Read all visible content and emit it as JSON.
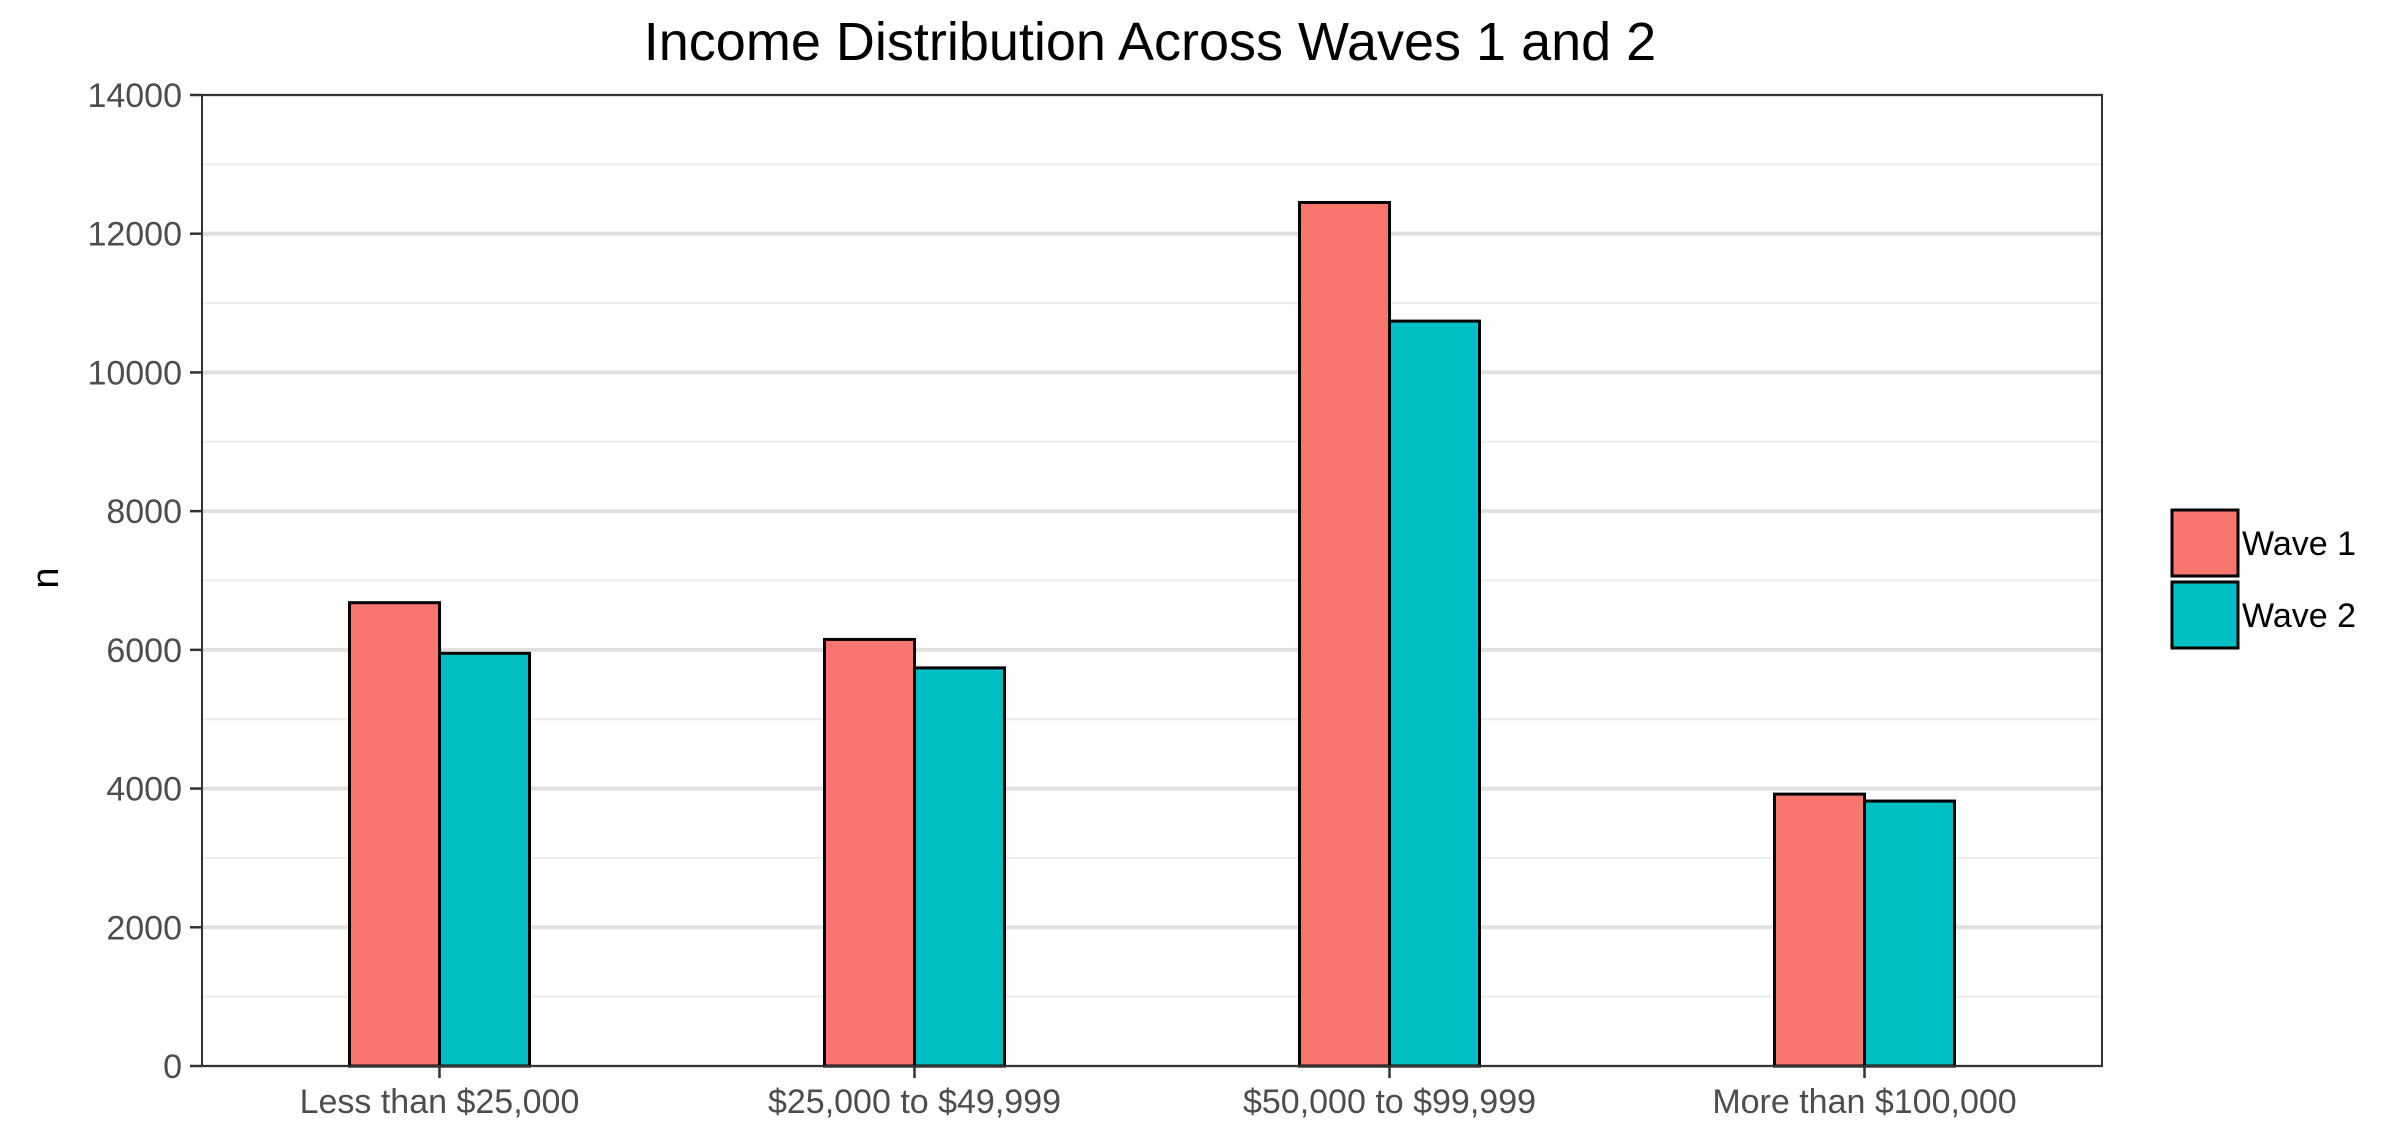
{
  "chart_data": {
    "type": "bar",
    "title": "Income Distribution Across Waves 1 and 2",
    "xlabel": "",
    "ylabel": "n",
    "categories": [
      "Less than $25,000",
      "$25,000 to $49,999",
      "$50,000 to $99,999",
      "More than $100,000"
    ],
    "series": [
      {
        "name": "Wave 1",
        "color": "#F8766D",
        "values": [
          6680,
          6150,
          12450,
          3920
        ]
      },
      {
        "name": "Wave 2",
        "color": "#00BFC4",
        "values": [
          5950,
          5740,
          10740,
          3820
        ]
      }
    ],
    "ylim": [
      0,
      14000
    ],
    "yticks": [
      0,
      2000,
      4000,
      6000,
      8000,
      10000,
      12000,
      14000
    ],
    "grid": true,
    "legend_position": "right"
  }
}
